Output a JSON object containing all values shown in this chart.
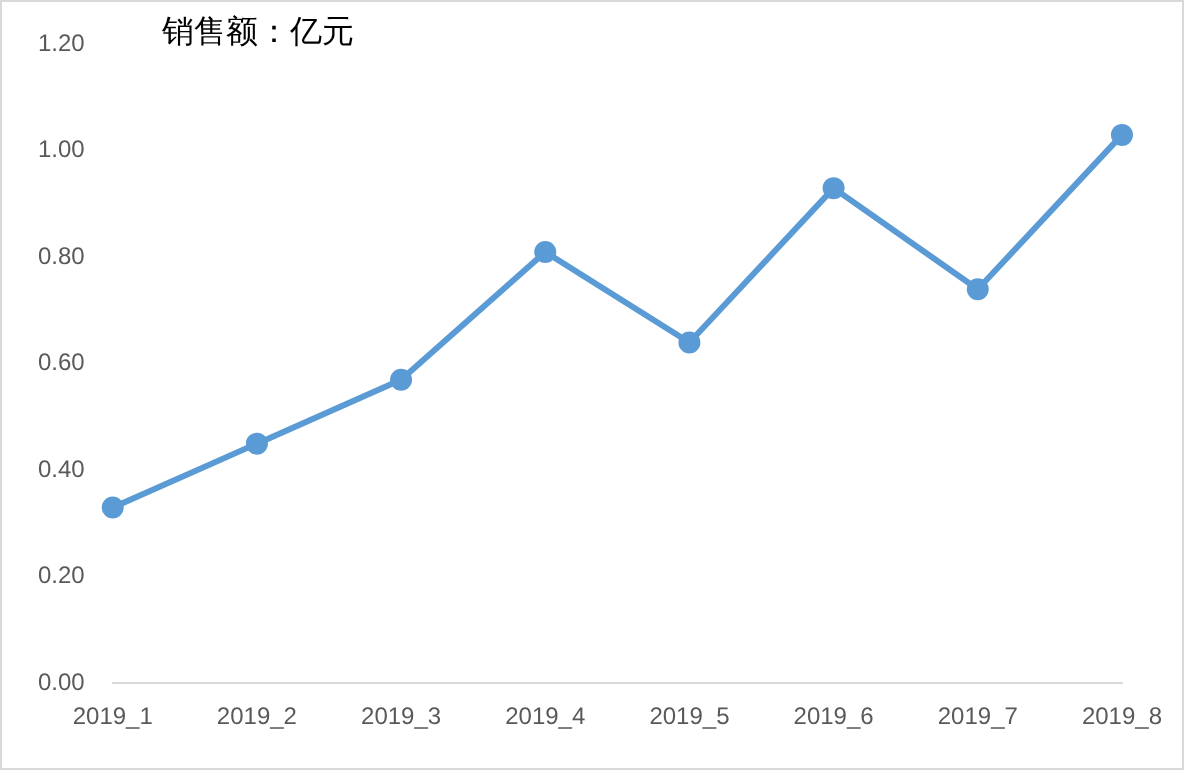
{
  "chart_data": {
    "type": "line",
    "title": "销售额：亿元",
    "categories": [
      "2019_1",
      "2019_2",
      "2019_3",
      "2019_4",
      "2019_5",
      "2019_6",
      "2019_7",
      "2019_8"
    ],
    "series": [
      {
        "color": "#5b9bd5",
        "values": [
          0.33,
          0.45,
          0.57,
          0.81,
          0.64,
          0.93,
          0.74,
          1.03
        ]
      }
    ],
    "ylim": [
      0,
      1.2
    ],
    "yticks": [
      {
        "value": 0,
        "label": "0.00"
      },
      {
        "value": 0.2,
        "label": "0.20"
      },
      {
        "value": 0.4,
        "label": "0.40"
      },
      {
        "value": 0.6,
        "label": "0.60"
      },
      {
        "value": 0.8,
        "label": "0.80"
      },
      {
        "value": 1,
        "label": "1.00"
      },
      {
        "value": 1.2,
        "label": "1.20"
      }
    ],
    "grid": false,
    "legend": false,
    "marker": "circle",
    "line_style": "solid"
  }
}
